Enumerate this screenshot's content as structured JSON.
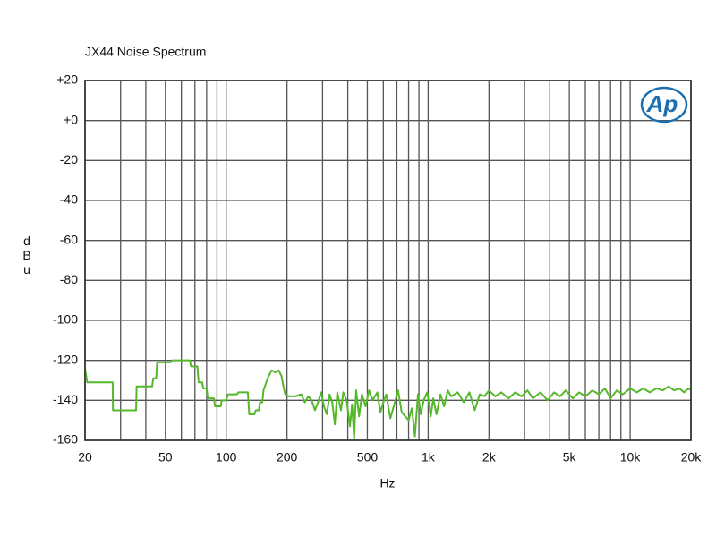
{
  "chart_data": {
    "type": "line",
    "title": "JX44 Noise Spectrum",
    "x_label": "Hz",
    "y_label": "dBu",
    "logo": "Ap",
    "x_scale": "log",
    "grid": true,
    "xlim": [
      20,
      20000
    ],
    "xticks": [
      20,
      50,
      100,
      200,
      500,
      {
        "value": 1000,
        "label": "1k"
      },
      {
        "value": 2000,
        "label": "2k"
      },
      {
        "value": 5000,
        "label": "5k"
      },
      {
        "value": 10000,
        "label": "10k"
      },
      {
        "value": 20000,
        "label": "20k"
      }
    ],
    "xminor": [
      30,
      40,
      60,
      70,
      80,
      90,
      300,
      400,
      600,
      700,
      800,
      900,
      3000,
      4000,
      6000,
      7000,
      8000,
      9000
    ],
    "ylim": [
      -160,
      20
    ],
    "yticks": [
      -160,
      -140,
      -120,
      -100,
      -80,
      -60,
      -40,
      -20,
      {
        "value": 0,
        "label": "+0"
      },
      {
        "value": 20,
        "label": "+20"
      }
    ],
    "series": [
      {
        "color": "#55b82a",
        "x": [
          20,
          20.5,
          27.4,
          27.5,
          35.8,
          36,
          43,
          43.5,
          45,
          45.5,
          53,
          54,
          66,
          67,
          72,
          73,
          76,
          77,
          80,
          81,
          87,
          88,
          94,
          95,
          100,
          102,
          113,
          115,
          128,
          130,
          138,
          140,
          145,
          147,
          151,
          153,
          158,
          162,
          168,
          175,
          182,
          188,
          192,
          196,
          205,
          220,
          235,
          245,
          255,
          265,
          275,
          285,
          295,
          305,
          315,
          325,
          335,
          345,
          355,
          370,
          380,
          395,
          410,
          420,
          430,
          440,
          455,
          470,
          490,
          510,
          530,
          560,
          580,
          600,
          620,
          650,
          680,
          710,
          740,
          770,
          800,
          830,
          860,
          890,
          920,
          950,
          990,
          1030,
          1060,
          1100,
          1150,
          1200,
          1250,
          1300,
          1400,
          1500,
          1600,
          1700,
          1800,
          1900,
          2000,
          2150,
          2300,
          2500,
          2700,
          2900,
          3100,
          3300,
          3600,
          3900,
          4200,
          4500,
          4800,
          5200,
          5600,
          6000,
          6500,
          7000,
          7500,
          8000,
          8600,
          9200,
          10000,
          10800,
          11600,
          12500,
          13500,
          14500,
          15500,
          16500,
          17500,
          18500,
          19500,
          20000
        ],
        "values": [
          -124,
          -131,
          -131,
          -145,
          -145,
          -133,
          -133,
          -129,
          -129,
          -121,
          -121,
          -120,
          -120,
          -123,
          -123,
          -131,
          -131,
          -134,
          -134,
          -139,
          -139,
          -143,
          -143,
          -140,
          -140,
          -137,
          -137,
          -136,
          -136,
          -147,
          -147,
          -145,
          -145,
          -141,
          -141,
          -135,
          -131,
          -128,
          -125,
          -126,
          -125,
          -128,
          -133,
          -137,
          -138,
          -138,
          -137,
          -141,
          -138,
          -140,
          -145,
          -141,
          -136,
          -143,
          -147,
          -137,
          -141,
          -152,
          -136,
          -145,
          -136,
          -140,
          -153,
          -142,
          -159,
          -135,
          -148,
          -137,
          -143,
          -135,
          -140,
          -136,
          -146,
          -141,
          -137,
          -149,
          -142,
          -135,
          -146,
          -148,
          -150,
          -144,
          -158,
          -137,
          -147,
          -140,
          -136,
          -148,
          -139,
          -147,
          -137,
          -143,
          -135,
          -138,
          -136,
          -141,
          -136,
          -145,
          -137,
          -138,
          -135,
          -138,
          -136,
          -139,
          -136,
          -138,
          -135,
          -139,
          -136,
          -140,
          -136,
          -138,
          -135,
          -139,
          -136,
          -138,
          -135,
          -137,
          -134,
          -139,
          -135,
          -137,
          -134,
          -136,
          -134,
          -136,
          -134,
          -135,
          -133,
          -135,
          -134,
          -136,
          -134,
          -135
        ]
      }
    ]
  }
}
